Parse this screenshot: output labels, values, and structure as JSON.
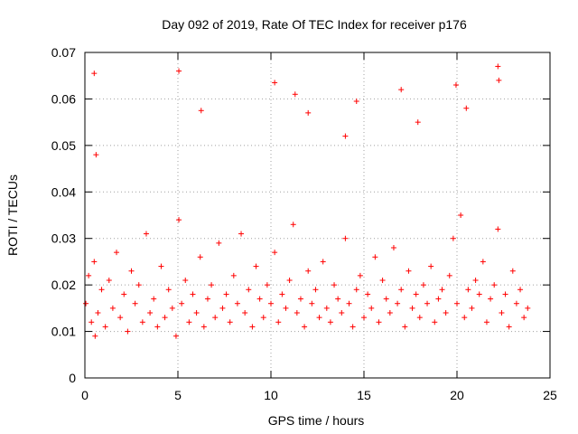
{
  "chart_data": {
    "type": "scatter",
    "title": "Day 092 of 2019, Rate Of TEC Index for receiver p176",
    "xlabel": "GPS time / hours",
    "ylabel": "ROTI / TECUs",
    "xlim": [
      0,
      25
    ],
    "ylim": [
      0,
      0.07
    ],
    "xticks": [
      0,
      5,
      10,
      15,
      20,
      25
    ],
    "xtick_labels": [
      "0",
      "5",
      "10",
      "15",
      "20",
      "25"
    ],
    "yticks": [
      0,
      0.01,
      0.02,
      0.03,
      0.04,
      0.05,
      0.06,
      0.07
    ],
    "ytick_labels": [
      "0",
      "0.01",
      "0.02",
      "0.03",
      "0.04",
      "0.05",
      "0.06",
      "0.07"
    ],
    "grid": true,
    "marker": "+",
    "color": "#ff0000",
    "series": [
      {
        "name": "p176",
        "x": [
          0.05,
          0.2,
          0.35,
          0.5,
          0.55,
          0.7,
          0.9,
          1.1,
          1.3,
          1.5,
          1.7,
          1.9,
          2.1,
          2.3,
          2.5,
          2.7,
          2.9,
          3.1,
          3.3,
          3.5,
          3.7,
          3.9,
          4.1,
          4.3,
          4.5,
          4.7,
          4.9,
          5.05,
          5.2,
          5.4,
          5.6,
          5.8,
          6.0,
          6.2,
          6.4,
          6.6,
          6.8,
          7.0,
          7.2,
          7.4,
          7.6,
          7.8,
          8.0,
          8.2,
          8.4,
          8.6,
          8.8,
          9.0,
          9.2,
          9.4,
          9.6,
          9.8,
          10.0,
          10.2,
          10.4,
          10.6,
          10.8,
          11.0,
          11.2,
          11.4,
          11.6,
          11.8,
          12.0,
          12.2,
          12.4,
          12.6,
          12.8,
          13.0,
          13.2,
          13.4,
          13.6,
          13.8,
          14.0,
          14.2,
          14.4,
          14.6,
          14.8,
          15.0,
          15.2,
          15.4,
          15.6,
          15.8,
          16.0,
          16.2,
          16.4,
          16.6,
          16.8,
          17.0,
          17.2,
          17.4,
          17.6,
          17.8,
          18.0,
          18.2,
          18.4,
          18.6,
          18.8,
          19.0,
          19.2,
          19.4,
          19.6,
          19.8,
          20.0,
          20.2,
          20.4,
          20.6,
          20.8,
          21.0,
          21.2,
          21.4,
          21.6,
          21.8,
          22.0,
          22.2,
          22.4,
          22.6,
          22.8,
          23.0,
          23.2,
          23.4,
          23.6,
          23.8,
          0.5,
          5.05,
          11.3,
          17.0,
          19.95,
          22.2,
          22.25,
          6.25,
          10.2,
          14.6,
          0.6,
          12.0,
          20.5,
          14.0,
          17.9
        ],
        "y": [
          0.016,
          0.022,
          0.012,
          0.025,
          0.009,
          0.014,
          0.019,
          0.011,
          0.021,
          0.015,
          0.027,
          0.013,
          0.018,
          0.01,
          0.023,
          0.016,
          0.02,
          0.012,
          0.031,
          0.014,
          0.017,
          0.011,
          0.024,
          0.013,
          0.019,
          0.015,
          0.009,
          0.034,
          0.016,
          0.021,
          0.012,
          0.018,
          0.014,
          0.026,
          0.011,
          0.017,
          0.02,
          0.013,
          0.029,
          0.015,
          0.018,
          0.012,
          0.022,
          0.016,
          0.031,
          0.014,
          0.019,
          0.011,
          0.024,
          0.017,
          0.013,
          0.02,
          0.016,
          0.027,
          0.012,
          0.018,
          0.015,
          0.021,
          0.033,
          0.014,
          0.017,
          0.011,
          0.023,
          0.016,
          0.019,
          0.013,
          0.025,
          0.015,
          0.012,
          0.02,
          0.017,
          0.014,
          0.03,
          0.016,
          0.011,
          0.019,
          0.022,
          0.013,
          0.018,
          0.015,
          0.026,
          0.012,
          0.021,
          0.017,
          0.014,
          0.028,
          0.016,
          0.019,
          0.011,
          0.023,
          0.015,
          0.018,
          0.013,
          0.02,
          0.016,
          0.024,
          0.012,
          0.017,
          0.019,
          0.014,
          0.022,
          0.03,
          0.016,
          0.035,
          0.013,
          0.019,
          0.015,
          0.021,
          0.018,
          0.025,
          0.012,
          0.017,
          0.02,
          0.032,
          0.014,
          0.018,
          0.011,
          0.023,
          0.016,
          0.019,
          0.013,
          0.015,
          0.0655,
          0.066,
          0.061,
          0.062,
          0.063,
          0.067,
          0.064,
          0.0575,
          0.0635,
          0.0595,
          0.048,
          0.057,
          0.058,
          0.052,
          0.055
        ]
      }
    ]
  }
}
